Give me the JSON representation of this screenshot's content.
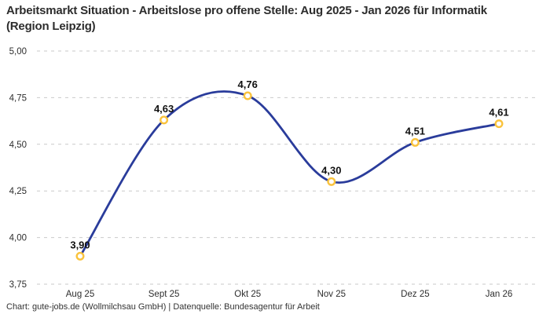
{
  "header": {
    "title": "Arbeitsmarkt Situation - Arbeitslose pro offene Stelle: Aug 2025 - Jan 2026 für Informatik (Region Leipzig)"
  },
  "footer": {
    "credit": "Chart: gute-jobs.de (Wollmilchsau GmbH) | Datenquelle: Bundesagentur für Arbeit"
  },
  "chart_data": {
    "type": "line",
    "title": "Arbeitsmarkt Situation - Arbeitslose pro offene Stelle: Aug 2025 - Jan 2026 für Informatik (Region Leipzig)",
    "categories": [
      "Aug 25",
      "Sept 25",
      "Okt 25",
      "Nov 25",
      "Dez 25",
      "Jan 26"
    ],
    "values": [
      3.9,
      4.63,
      4.76,
      4.3,
      4.51,
      4.61
    ],
    "point_labels": [
      "3,90",
      "4,63",
      "4,76",
      "4,30",
      "4,51",
      "4,61"
    ],
    "y_ticks": [
      {
        "value": 5.0,
        "label": "5,00"
      },
      {
        "value": 4.75,
        "label": "4,75"
      },
      {
        "value": 4.5,
        "label": "4,50"
      },
      {
        "value": 4.25,
        "label": "4,25"
      },
      {
        "value": 4.0,
        "label": "4,00"
      },
      {
        "value": 3.75,
        "label": "3,75"
      }
    ],
    "ylim": [
      3.75,
      5.0
    ],
    "xlabel": "",
    "ylabel": "",
    "grid": "horizontal-dashed",
    "legend": "none",
    "smooth": true,
    "colors": {
      "line": "#2a3c9b",
      "marker_ring": "#fac33c",
      "marker_fill": "#ffffff",
      "gridline": "#c9c9c9",
      "tick_text": "#2e2e2e",
      "point_label_text": "#101010"
    }
  }
}
